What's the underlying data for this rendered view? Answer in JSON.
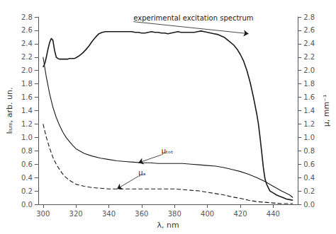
{
  "chart_data": {
    "type": "line",
    "xlabel": "λ, nm",
    "ylabel": "Iₗᵤₘ, arb. un.",
    "y2label": "μ, mm⁻¹",
    "xlim": [
      297,
      455
    ],
    "ylim": [
      0.0,
      2.8
    ],
    "y2lim": [
      0.0,
      2.8
    ],
    "xticks": [
      300,
      320,
      340,
      360,
      380,
      400,
      420,
      440
    ],
    "yticks": [
      {
        "value": 0.0,
        "label": "0.0"
      },
      0.2,
      0.4,
      0.6,
      0.8,
      {
        "value": 1.0,
        "label": "1.0"
      },
      1.2,
      1.4,
      1.6,
      1.8,
      {
        "value": 2.0,
        "label": "2.0"
      },
      2.2,
      2.4,
      2.6,
      2.8
    ],
    "y2ticks": [
      {
        "value": 0.0,
        "label": "0.0"
      },
      0.2,
      0.4,
      0.6,
      0.8,
      {
        "value": 1.0,
        "label": "1.0"
      },
      1.2,
      1.4,
      1.6,
      1.8,
      {
        "value": 2.0,
        "label": "2.0"
      },
      2.2,
      2.4,
      2.6,
      2.8
    ],
    "grid": false,
    "series": [
      {
        "color": "#1a1a1a",
        "line_style": "solid",
        "x": [
          300,
          301,
          302,
          303,
          304,
          305,
          306,
          307,
          308,
          309,
          310,
          311,
          312,
          313,
          314,
          315,
          316,
          317,
          318,
          319,
          320,
          322,
          324,
          326,
          328,
          330,
          332,
          334,
          336,
          338,
          340,
          342,
          344,
          346,
          348,
          350,
          352,
          354,
          356,
          358,
          360,
          362,
          364,
          366,
          368,
          370,
          372,
          374,
          376,
          378,
          380,
          382,
          384,
          386,
          388,
          390,
          392,
          394,
          396,
          398,
          400,
          402,
          404,
          406,
          408,
          410,
          412,
          414,
          416,
          418,
          420,
          422,
          424,
          426,
          428,
          430,
          431,
          432,
          433,
          434,
          435,
          436,
          437,
          438,
          440,
          442,
          444,
          446,
          448,
          450,
          452
        ],
        "values": [
          2.05,
          2.1,
          2.2,
          2.32,
          2.42,
          2.48,
          2.45,
          2.3,
          2.2,
          2.18,
          2.17,
          2.17,
          2.17,
          2.17,
          2.17,
          2.17,
          2.18,
          2.18,
          2.18,
          2.18,
          2.19,
          2.22,
          2.26,
          2.31,
          2.37,
          2.44,
          2.5,
          2.55,
          2.57,
          2.58,
          2.58,
          2.58,
          2.58,
          2.58,
          2.58,
          2.58,
          2.58,
          2.58,
          2.57,
          2.57,
          2.56,
          2.56,
          2.57,
          2.58,
          2.57,
          2.57,
          2.56,
          2.56,
          2.55,
          2.56,
          2.57,
          2.58,
          2.57,
          2.57,
          2.57,
          2.57,
          2.57,
          2.58,
          2.59,
          2.58,
          2.57,
          2.56,
          2.55,
          2.54,
          2.52,
          2.5,
          2.46,
          2.42,
          2.38,
          2.32,
          2.24,
          2.14,
          2.0,
          1.82,
          1.6,
          1.35,
          1.2,
          1.0,
          0.78,
          0.55,
          0.38,
          0.3,
          0.25,
          0.2,
          0.17,
          0.14,
          0.12,
          0.1,
          0.08,
          0.07,
          0.06
        ]
      },
      {
        "color": "#1a1a1a",
        "line_style": "solid",
        "x": [
          300,
          302,
          304,
          306,
          308,
          310,
          312,
          314,
          316,
          318,
          320,
          325,
          330,
          335,
          340,
          345,
          350,
          355,
          360,
          365,
          370,
          375,
          380,
          385,
          390,
          395,
          400,
          405,
          410,
          415,
          420,
          425,
          430,
          435,
          440,
          445,
          450,
          452
        ],
        "values": [
          2.2,
          1.9,
          1.65,
          1.45,
          1.3,
          1.18,
          1.08,
          1.0,
          0.94,
          0.88,
          0.83,
          0.76,
          0.72,
          0.69,
          0.67,
          0.65,
          0.64,
          0.63,
          0.62,
          0.62,
          0.61,
          0.61,
          0.61,
          0.61,
          0.6,
          0.59,
          0.58,
          0.57,
          0.55,
          0.52,
          0.49,
          0.45,
          0.4,
          0.34,
          0.27,
          0.2,
          0.14,
          0.1
        ]
      },
      {
        "color": "#1a1a1a",
        "line_style": "dashed",
        "x": [
          300,
          302,
          304,
          306,
          308,
          310,
          312,
          314,
          316,
          318,
          320,
          325,
          330,
          335,
          340,
          345,
          350,
          355,
          360,
          365,
          370,
          375,
          380,
          385,
          390,
          395,
          400,
          405,
          410,
          415,
          420,
          425,
          430,
          435,
          440,
          445,
          450,
          452
        ],
        "values": [
          1.2,
          1.0,
          0.84,
          0.7,
          0.6,
          0.52,
          0.45,
          0.4,
          0.36,
          0.33,
          0.3,
          0.27,
          0.25,
          0.24,
          0.23,
          0.23,
          0.23,
          0.23,
          0.23,
          0.23,
          0.23,
          0.23,
          0.23,
          0.22,
          0.21,
          0.2,
          0.18,
          0.16,
          0.14,
          0.11,
          0.09,
          0.06,
          0.04,
          0.03,
          0.02,
          0.01,
          0.01,
          0.01
        ]
      }
    ],
    "annotations": [
      {
        "text": "experimental excitation spectrum",
        "xy": [
          425,
          2.55
        ],
        "xytext": [
          355,
          2.73
        ],
        "color": "#1a1a1a"
      },
      {
        "text": "μₜₒₜ",
        "xy": [
          358,
          0.62
        ],
        "xytext": [
          372,
          0.74
        ],
        "color": "#1a1a1a"
      },
      {
        "text": "μₐ",
        "xy": [
          345,
          0.23
        ],
        "xytext": [
          358,
          0.42
        ],
        "color": "#1a1a1a"
      }
    ]
  }
}
